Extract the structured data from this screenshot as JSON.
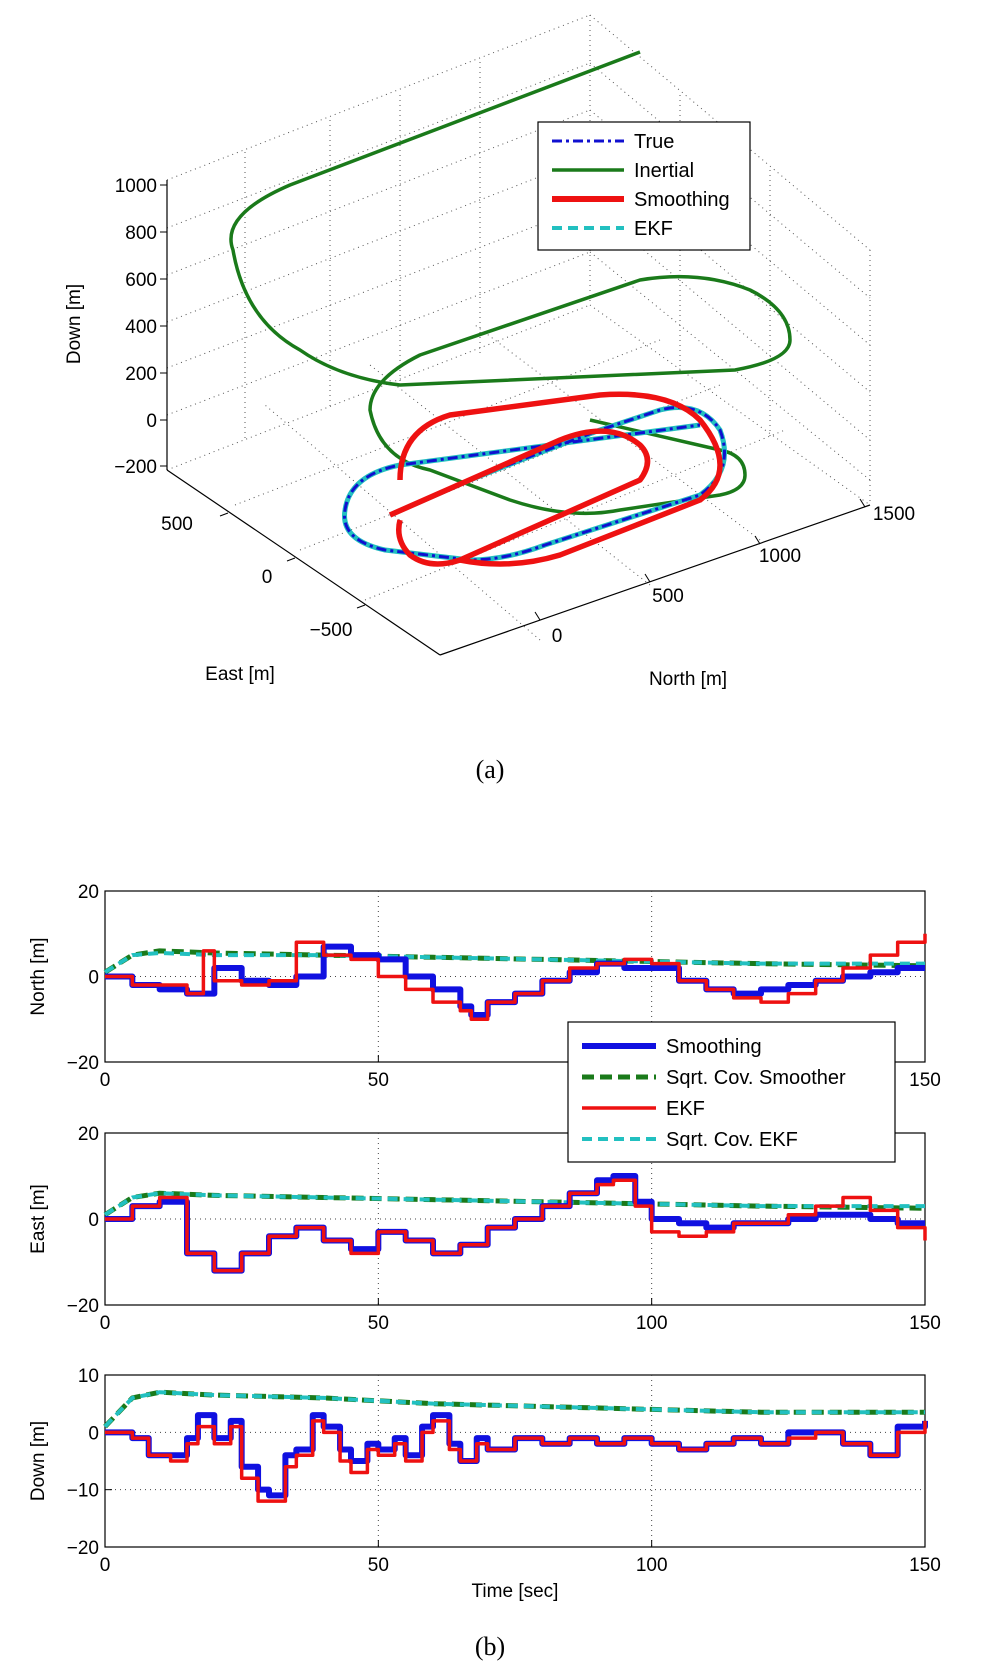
{
  "figure": {
    "panel_a_label": "(a)",
    "panel_b_label": "(b)"
  },
  "chart_data": [
    {
      "type": "line",
      "projection": "3d",
      "xlabel": "North [m]",
      "ylabel": "East [m]",
      "zlabel": "Down [m]",
      "north_ticks": [
        "0",
        "500",
        "1000",
        "1500"
      ],
      "east_ticks": [
        "−500",
        "0",
        "500"
      ],
      "down_ticks": [
        "−200",
        "0",
        "200",
        "400",
        "600",
        "800",
        "1000"
      ],
      "legend": {
        "position": "top-right",
        "entries": [
          {
            "label": "True",
            "color": "#1010d0",
            "style": "dashdot"
          },
          {
            "label": "Inertial",
            "color": "#1a7a1a",
            "style": "solid"
          },
          {
            "label": "Smoothing",
            "color": "#ee1111",
            "style": "solid-thick"
          },
          {
            "label": "EKF",
            "color": "#22c0c0",
            "style": "dashed"
          }
        ]
      },
      "grid": true
    },
    {
      "type": "line",
      "ylabel": "North [m]",
      "xlim": [
        0,
        150
      ],
      "ylim": [
        -20,
        20
      ],
      "x_ticks": [
        "0",
        "50",
        "100",
        "150"
      ],
      "y_ticks": [
        "−20",
        "0",
        "20"
      ],
      "grid": true,
      "series": [
        {
          "name": "Smoothing",
          "color": "#1010e0",
          "x": [
            0,
            5,
            10,
            15,
            20,
            25,
            30,
            35,
            40,
            45,
            50,
            55,
            60,
            65,
            67,
            70,
            75,
            80,
            85,
            90,
            95,
            100,
            105,
            110,
            115,
            120,
            125,
            130,
            135,
            140,
            145,
            150
          ],
          "values": [
            0,
            -2,
            -3,
            -4,
            2,
            -1,
            -2,
            0,
            7,
            5,
            4,
            0,
            -3,
            -7,
            -9,
            -6,
            -4,
            -1,
            1,
            3,
            2,
            2,
            -1,
            -3,
            -4,
            -3,
            -2,
            -1,
            0,
            1,
            2,
            2
          ]
        },
        {
          "name": "Sqrt. Cov. Smoother",
          "color": "#1a7a1a",
          "x": [
            0,
            5,
            10,
            20,
            40,
            60,
            80,
            100,
            120,
            150
          ],
          "values": [
            1,
            5,
            6,
            5.5,
            5,
            4.5,
            4,
            3.5,
            3,
            2.5
          ]
        },
        {
          "name": "EKF",
          "color": "#ee1111",
          "x": [
            0,
            5,
            10,
            15,
            18,
            20,
            25,
            30,
            35,
            40,
            45,
            50,
            55,
            60,
            65,
            67,
            70,
            75,
            80,
            85,
            90,
            95,
            100,
            105,
            110,
            115,
            120,
            125,
            130,
            135,
            140,
            145,
            150
          ],
          "values": [
            0,
            -2,
            -2,
            -4,
            6,
            -1,
            -2,
            -1,
            8,
            5,
            4,
            0,
            -3,
            -6,
            -8,
            -10,
            -6,
            -4,
            -1,
            2,
            3,
            4,
            3,
            -1,
            -3,
            -5,
            -6,
            -4,
            -1,
            2,
            5,
            8,
            10
          ]
        },
        {
          "name": "Sqrt. Cov. EKF",
          "color": "#22c0c0",
          "x": [
            0,
            5,
            10,
            20,
            40,
            60,
            80,
            100,
            120,
            150
          ],
          "values": [
            1,
            5,
            5.5,
            5,
            5,
            4.5,
            4,
            3.5,
            3,
            3
          ]
        }
      ]
    },
    {
      "type": "line",
      "ylabel": "East [m]",
      "xlim": [
        0,
        150
      ],
      "ylim": [
        -20,
        20
      ],
      "x_ticks": [
        "0",
        "50",
        "100",
        "150"
      ],
      "y_ticks": [
        "−20",
        "0",
        "20"
      ],
      "grid": true,
      "series": [
        {
          "name": "Smoothing",
          "color": "#1010e0",
          "x": [
            0,
            5,
            10,
            15,
            20,
            25,
            30,
            35,
            40,
            45,
            50,
            55,
            60,
            65,
            70,
            75,
            80,
            85,
            90,
            93,
            97,
            100,
            105,
            110,
            115,
            120,
            125,
            130,
            135,
            140,
            145,
            150
          ],
          "values": [
            0,
            3,
            4,
            -8,
            -12,
            -8,
            -4,
            -2,
            -5,
            -7,
            -3,
            -5,
            -8,
            -6,
            -2,
            0,
            3,
            6,
            9,
            10,
            4,
            0,
            -1,
            -2,
            -1,
            -1,
            0,
            1,
            1,
            0,
            -1,
            -1
          ]
        },
        {
          "name": "Sqrt. Cov. Smoother",
          "color": "#1a7a1a",
          "x": [
            0,
            5,
            10,
            20,
            40,
            60,
            80,
            100,
            120,
            150
          ],
          "values": [
            1,
            5,
            6,
            5.5,
            5,
            4.5,
            4,
            3.5,
            3,
            2.5
          ]
        },
        {
          "name": "EKF",
          "color": "#ee1111",
          "x": [
            0,
            5,
            10,
            15,
            20,
            25,
            30,
            35,
            40,
            45,
            50,
            55,
            60,
            65,
            70,
            75,
            80,
            85,
            90,
            93,
            97,
            100,
            105,
            110,
            115,
            120,
            125,
            130,
            135,
            140,
            145,
            150
          ],
          "values": [
            0,
            3,
            5,
            -8,
            -12,
            -8,
            -4,
            -2,
            -5,
            -8,
            -3,
            -5,
            -8,
            -6,
            -2,
            0,
            3,
            6,
            8,
            9,
            3,
            -3,
            -4,
            -3,
            -1,
            -1,
            1,
            3,
            5,
            2,
            -2,
            -5
          ]
        },
        {
          "name": "Sqrt. Cov. EKF",
          "color": "#22c0c0",
          "x": [
            0,
            5,
            10,
            20,
            40,
            60,
            80,
            100,
            120,
            150
          ],
          "values": [
            1,
            5,
            6,
            5.5,
            5,
            4.5,
            4,
            3.5,
            3,
            3
          ]
        }
      ]
    },
    {
      "type": "line",
      "xlabel": "Time [sec]",
      "ylabel": "Down [m]",
      "xlim": [
        0,
        150
      ],
      "ylim": [
        -20,
        10
      ],
      "x_ticks": [
        "0",
        "50",
        "100",
        "150"
      ],
      "y_ticks": [
        "−20",
        "−10",
        "0",
        "10"
      ],
      "grid": true,
      "series": [
        {
          "name": "Smoothing",
          "color": "#1010e0",
          "x": [
            0,
            5,
            8,
            12,
            15,
            17,
            20,
            23,
            25,
            28,
            30,
            33,
            35,
            38,
            40,
            43,
            45,
            48,
            50,
            53,
            55,
            58,
            60,
            63,
            65,
            68,
            70,
            75,
            80,
            85,
            90,
            95,
            100,
            105,
            110,
            115,
            120,
            125,
            130,
            135,
            140,
            145,
            150
          ],
          "values": [
            0,
            -1,
            -4,
            -4,
            -1,
            3,
            -1,
            2,
            -6,
            -10,
            -11,
            -4,
            -3,
            3,
            1,
            -3,
            -5,
            -2,
            -3,
            -1,
            -4,
            1,
            3,
            -2,
            -5,
            -1,
            -3,
            -1,
            -2,
            -1,
            -2,
            -1,
            -2,
            -3,
            -2,
            -1,
            -2,
            0,
            0,
            -2,
            -4,
            1,
            2
          ]
        },
        {
          "name": "Sqrt. Cov. Smoother",
          "color": "#1a7a1a",
          "x": [
            0,
            5,
            10,
            20,
            40,
            60,
            80,
            100,
            120,
            150
          ],
          "values": [
            1,
            6,
            7,
            6.5,
            6,
            5,
            4.5,
            4,
            3.5,
            3.5
          ]
        },
        {
          "name": "EKF",
          "color": "#ee1111",
          "x": [
            0,
            5,
            8,
            12,
            15,
            17,
            20,
            23,
            25,
            28,
            30,
            33,
            35,
            38,
            40,
            43,
            45,
            48,
            50,
            53,
            55,
            58,
            60,
            63,
            65,
            68,
            70,
            75,
            80,
            85,
            90,
            95,
            100,
            105,
            110,
            115,
            120,
            125,
            130,
            135,
            140,
            145,
            150
          ],
          "values": [
            0,
            -1,
            -4,
            -5,
            -2,
            1,
            -2,
            1,
            -8,
            -12,
            -12,
            -6,
            -4,
            2,
            0,
            -5,
            -7,
            -3,
            -4,
            -2,
            -5,
            0,
            2,
            -3,
            -5,
            -2,
            -3,
            -1,
            -2,
            -1,
            -2,
            -1,
            -2,
            -3,
            -2,
            -1,
            -2,
            -1,
            0,
            -2,
            -4,
            0,
            2
          ]
        },
        {
          "name": "Sqrt. Cov. EKF",
          "color": "#22c0c0",
          "x": [
            0,
            5,
            10,
            20,
            40,
            60,
            80,
            100,
            120,
            150
          ],
          "values": [
            1,
            6,
            7,
            6.5,
            6,
            5,
            4.5,
            4,
            3.5,
            3.5
          ]
        }
      ],
      "legend": {
        "position": "upper-right-of-second-panel",
        "entries": [
          {
            "label": "Smoothing",
            "color": "#1010e0",
            "style": "solid-thick"
          },
          {
            "label": "Sqrt. Cov. Smoother",
            "color": "#1a7a1a",
            "style": "dashed-thick"
          },
          {
            "label": "EKF",
            "color": "#ee1111",
            "style": "solid"
          },
          {
            "label": "Sqrt. Cov. EKF",
            "color": "#22c0c0",
            "style": "dashed"
          }
        ]
      }
    }
  ]
}
